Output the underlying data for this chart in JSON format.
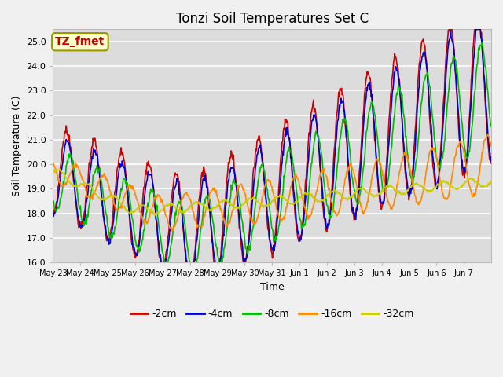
{
  "title": "Tonzi Soil Temperatures Set C",
  "xlabel": "Time",
  "ylabel": "Soil Temperature (C)",
  "ylim": [
    16.0,
    25.5
  ],
  "yticks": [
    16.0,
    17.0,
    18.0,
    19.0,
    20.0,
    21.0,
    22.0,
    23.0,
    24.0,
    25.0
  ],
  "series_colors": {
    "-2cm": "#cc0000",
    "-4cm": "#0000cc",
    "-8cm": "#00bb00",
    "-16cm": "#ff8800",
    "-32cm": "#cccc00"
  },
  "legend_labels": [
    "-2cm",
    "-4cm",
    "-8cm",
    "-16cm",
    "-32cm"
  ],
  "annotation_text": "TZ_fmet",
  "annotation_color": "#cc0000",
  "annotation_bg": "#ffffcc",
  "annotation_border": "#999900",
  "plot_bg": "#dcdcdc",
  "grid_color": "#ffffff",
  "xtick_labels": [
    "May 23",
    "May 24",
    "May 25",
    "May 26",
    "May 27",
    "May 28",
    "May 29",
    "May 30",
    "May 31",
    "Jun 1",
    "Jun 2",
    "Jun 3",
    "Jun 4",
    "Jun 5",
    "Jun 6",
    "Jun 7"
  ],
  "n_days": 16,
  "title_fontsize": 12,
  "axis_fontsize": 9,
  "tick_fontsize": 8,
  "legend_fontsize": 9
}
